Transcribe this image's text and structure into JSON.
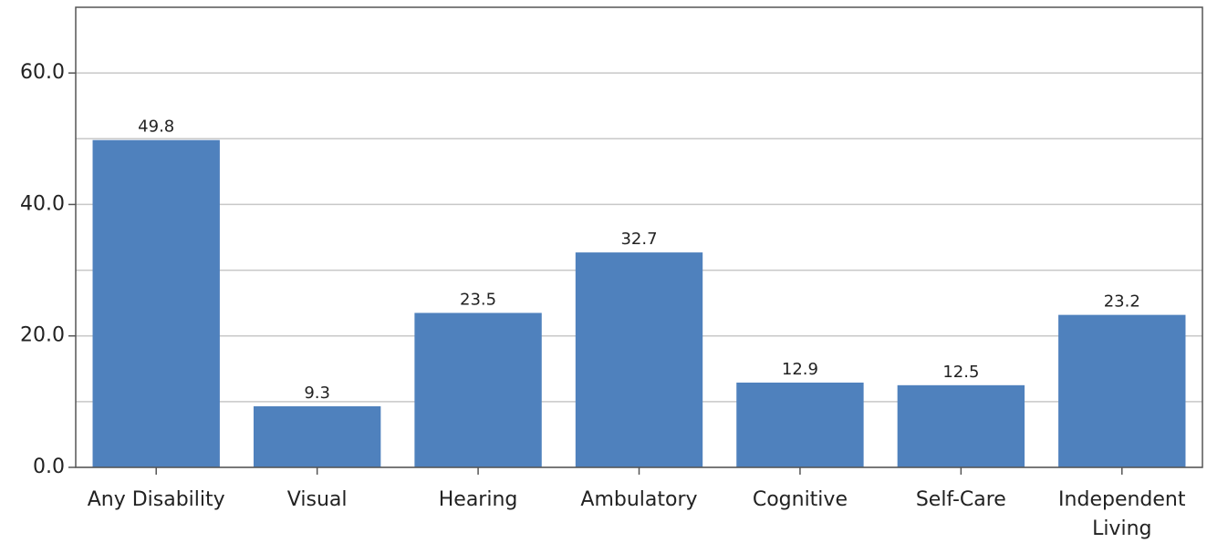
{
  "chart_data": {
    "type": "bar",
    "categories": [
      "Any Disability",
      "Visual",
      "Hearing",
      "Ambulatory",
      "Cognitive",
      "Self-Care",
      "Independent Living"
    ],
    "values": [
      49.8,
      9.3,
      23.5,
      32.7,
      12.9,
      12.5,
      23.2
    ],
    "color": "#4f81bd",
    "ylim": [
      0,
      70
    ],
    "yticks": [
      {
        "value": 0,
        "label": "0.0"
      },
      {
        "value": 20,
        "label": "20.0"
      },
      {
        "value": 40,
        "label": "40.0"
      },
      {
        "value": 60,
        "label": "60.0"
      }
    ],
    "minor_yticks": [
      10,
      30,
      50
    ],
    "grid": true
  }
}
